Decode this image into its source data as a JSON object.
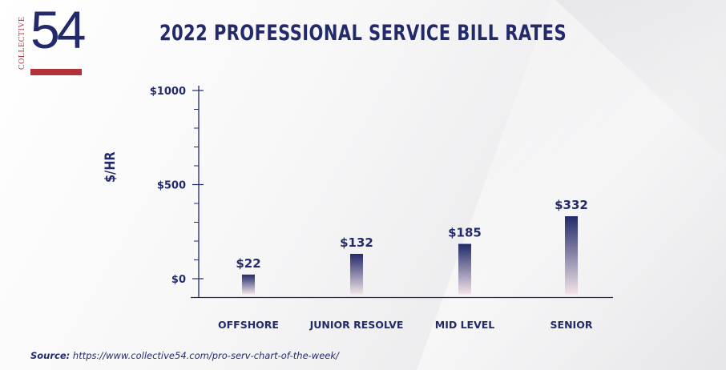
{
  "logo": {
    "vertical_text": "COLLECTIVE",
    "number": "54",
    "colors": {
      "navy": "#232a6b",
      "red": "#b3323a"
    }
  },
  "title": "2022 PROFESSIONAL SERVICE BILL RATES",
  "source": {
    "label": "Source:",
    "url": "https://www.collective54.com/pro-serv-chart-of-the-week/"
  },
  "chart_data": {
    "type": "bar",
    "title": "2022 PROFESSIONAL SERVICE BILL RATES",
    "ylabel": "$/HR",
    "xlabel": "",
    "categories": [
      "OFFSHORE",
      "JUNIOR RESOLVE",
      "MID LEVEL",
      "SENIOR"
    ],
    "values": [
      22,
      132,
      185,
      332
    ],
    "value_labels": [
      "$22",
      "$132",
      "$185",
      "$332"
    ],
    "ylim": [
      -100,
      1000
    ],
    "yticks": [
      0,
      500,
      1000
    ],
    "ytick_labels": [
      "$0",
      "$500",
      "$1000"
    ],
    "minor_ticks": [
      -100,
      100,
      200,
      300,
      400,
      600,
      700,
      800,
      900
    ],
    "grid": false,
    "bar_gradient": {
      "top": "#232a6b",
      "bottom": "#f3e4e8"
    }
  }
}
